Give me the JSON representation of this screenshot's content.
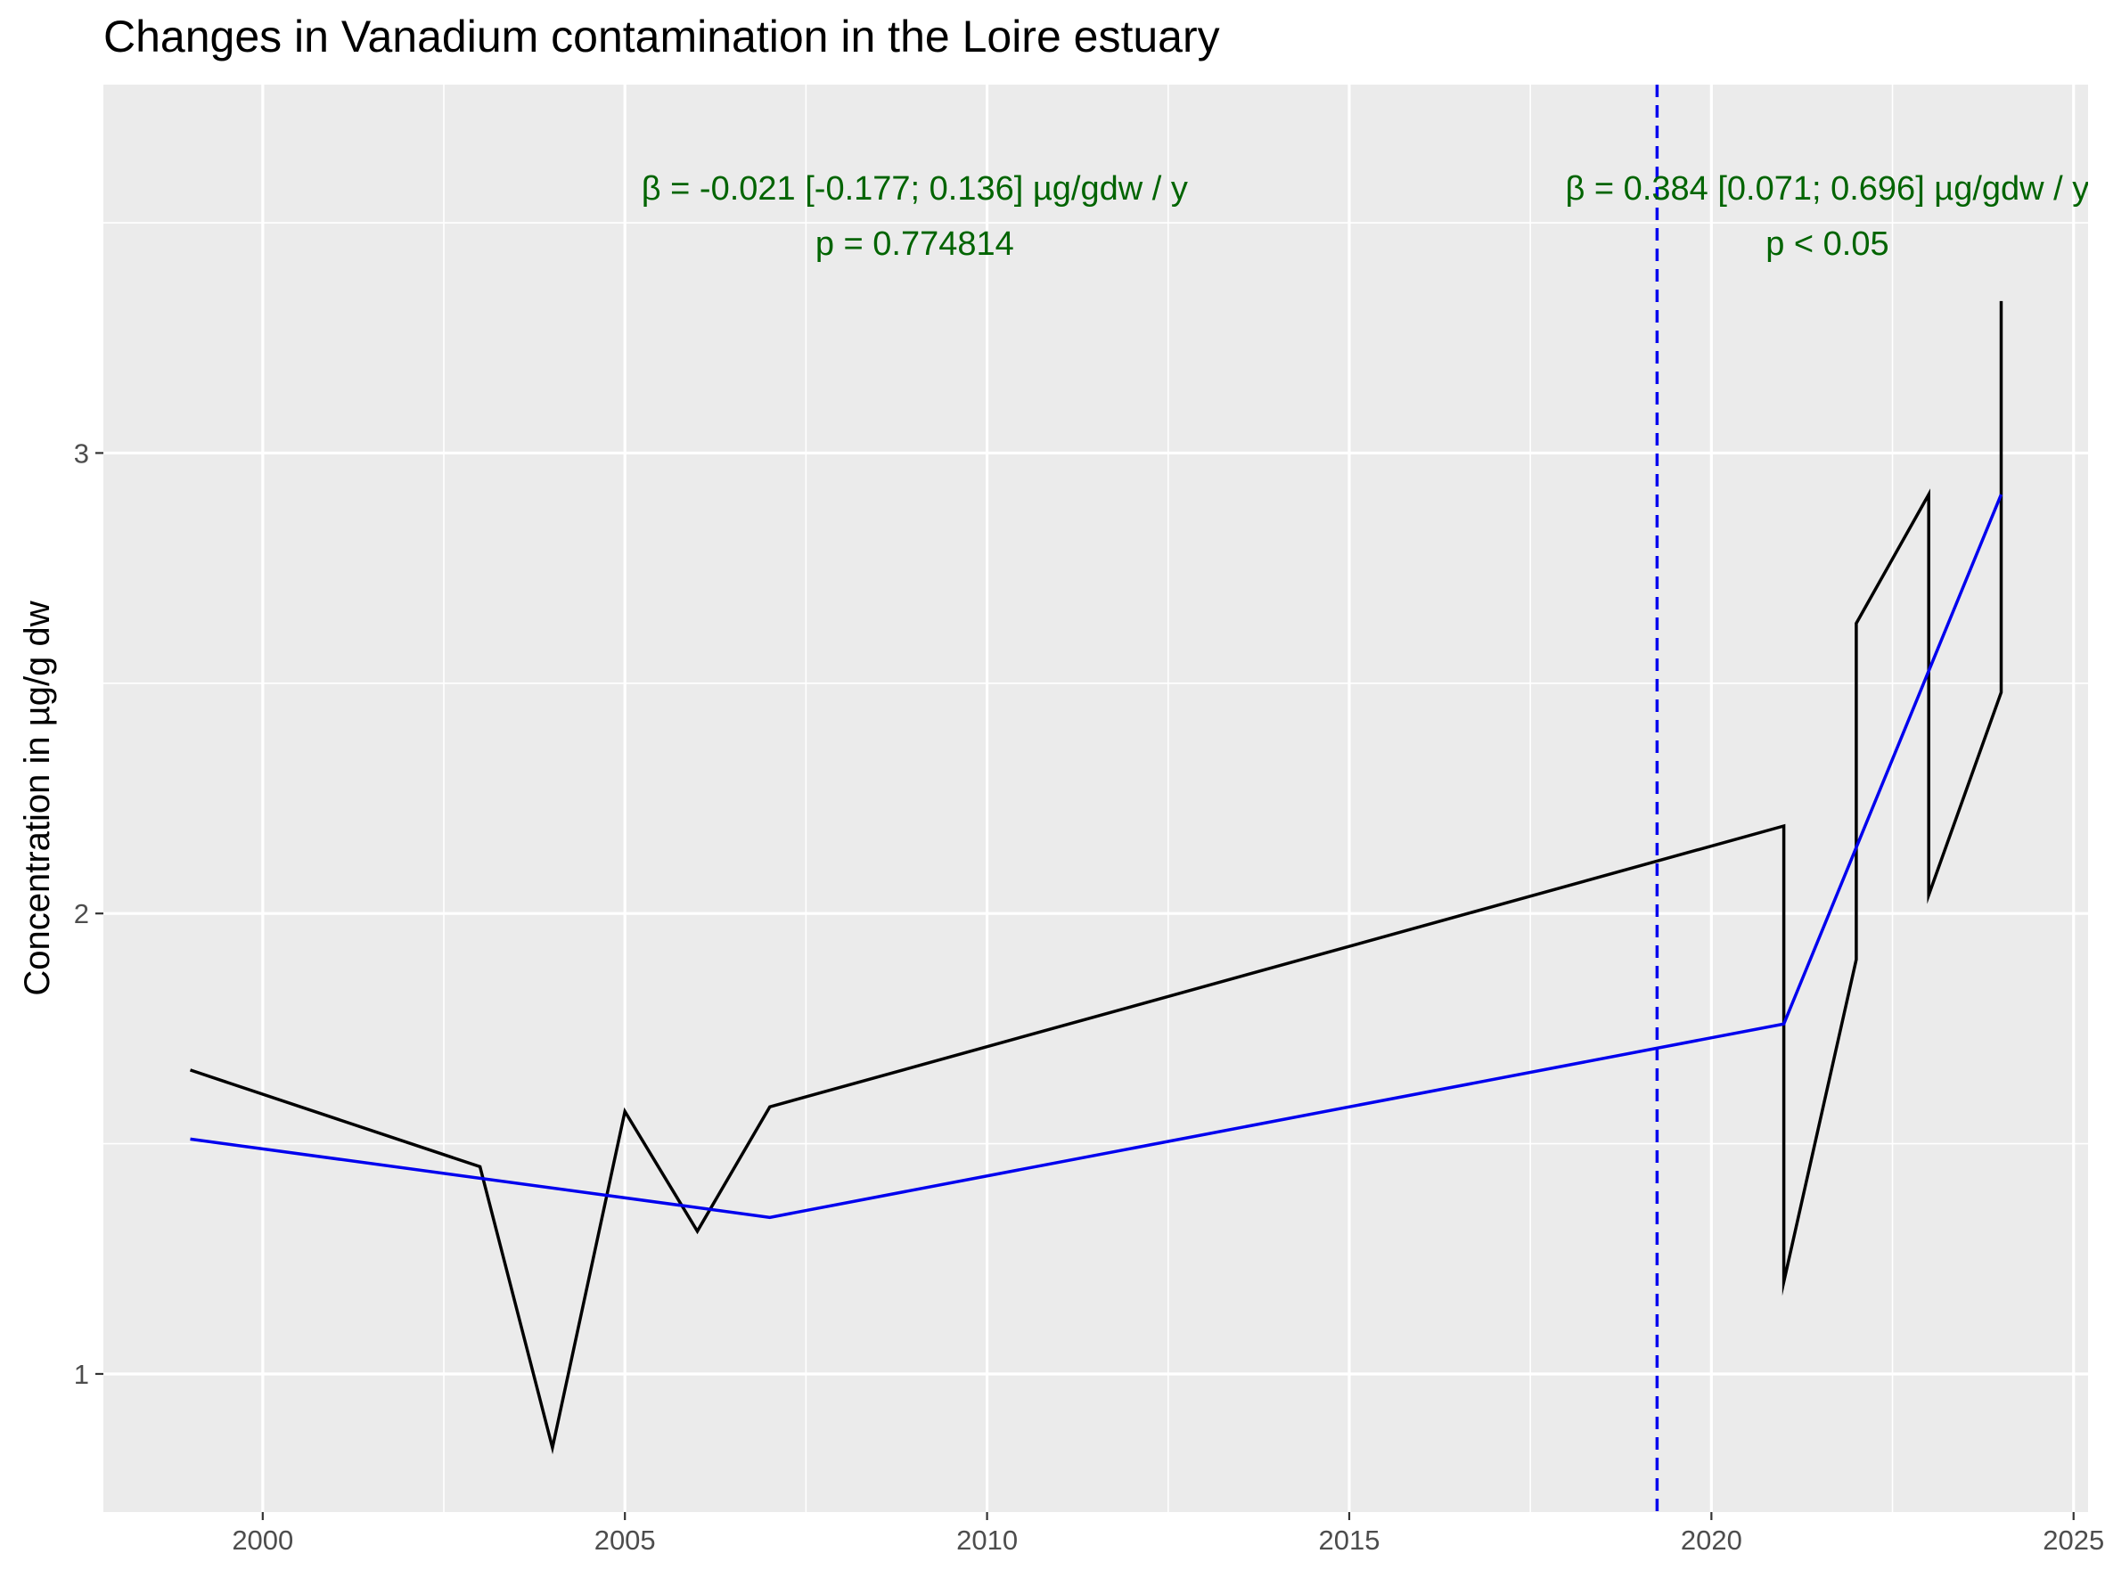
{
  "chart_data": {
    "type": "line",
    "title": "Changes in Vanadium contamination in the Loire estuary",
    "xlabel": "",
    "ylabel": "Concentration in µg/g dw",
    "xlim": [
      1997.8,
      2025.2
    ],
    "ylim": [
      0.7,
      3.8
    ],
    "x_ticks": [
      2000,
      2005,
      2010,
      2015,
      2020,
      2025
    ],
    "y_ticks": [
      1,
      2,
      3
    ],
    "grid": true,
    "series": [
      {
        "color": "#000000",
        "points": [
          [
            1999,
            1.66
          ],
          [
            2003,
            1.45
          ],
          [
            2004,
            0.84
          ],
          [
            2005,
            1.57
          ],
          [
            2006,
            1.31
          ],
          [
            2007,
            1.58
          ],
          [
            2021,
            2.19
          ],
          [
            2021,
            1.2
          ],
          [
            2022,
            1.9
          ],
          [
            2022,
            2.63
          ],
          [
            2023,
            2.91
          ],
          [
            2023,
            2.04
          ],
          [
            2024,
            2.48
          ],
          [
            2024,
            3.33
          ]
        ]
      },
      {
        "color": "#0000ee",
        "points": [
          [
            1999,
            1.51
          ],
          [
            2007,
            1.34
          ],
          [
            2021,
            1.76
          ],
          [
            2024,
            2.91
          ]
        ]
      }
    ],
    "vline": {
      "x": 2019.25,
      "color": "#0000ee",
      "style": "dashed"
    },
    "annotations": [
      {
        "x": 2009.0,
        "y": 3.55,
        "text": "β = -0.021 [-0.177; 0.136] µg/gdw / y",
        "color": "#006400"
      },
      {
        "x": 2009.0,
        "y": 3.43,
        "text": "p = 0.774814",
        "color": "#006400"
      },
      {
        "x": 2021.6,
        "y": 3.55,
        "text": "β = 0.384 [0.071; 0.696] µg/gdw / y",
        "color": "#006400"
      },
      {
        "x": 2021.6,
        "y": 3.43,
        "text": "p < 0.05",
        "color": "#006400"
      }
    ]
  }
}
